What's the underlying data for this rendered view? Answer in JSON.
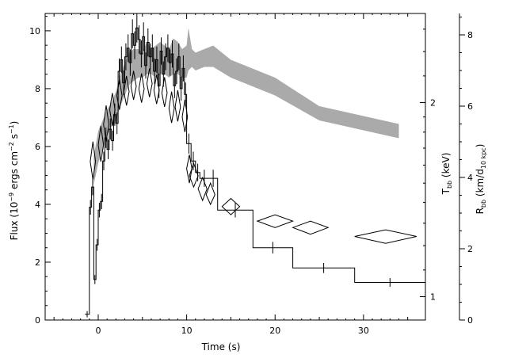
{
  "chart_data": {
    "type": "line",
    "xlabel": "Time (s)",
    "xlim": [
      -6,
      37
    ],
    "x_ticks": [
      0,
      10,
      20,
      30
    ],
    "grid": false,
    "left_axis": {
      "ylabel_prefix": "Flux (10",
      "ylabel_exp1": "−9",
      "ylabel_mid": " ergs cm",
      "ylabel_exp2": "−2",
      "ylabel_mid2": " s",
      "ylabel_exp3": "−1",
      "ylabel_suffix": ")",
      "ylim": [
        0,
        10.6
      ],
      "ticks": [
        0,
        2,
        4,
        6,
        8,
        10
      ]
    },
    "temperature_axis": {
      "label": "T",
      "label_sub": "bb",
      "unit": " (keV)",
      "scale": "log",
      "ylim": [
        0.92,
        2.75
      ],
      "ticks": [
        1,
        2
      ]
    },
    "radius_axis": {
      "label": "R",
      "label_sub": "bb",
      "unit": " (km/d",
      "unit_sub": "10 kpc",
      "unit_end": ")",
      "ylim": [
        0,
        8.6
      ],
      "ticks": [
        0,
        2,
        4,
        6,
        8
      ]
    },
    "series": [
      {
        "kind": "flux_histogram",
        "edges": [
          -1.5,
          -1,
          -0.75,
          -0.5,
          -0.25,
          0,
          0.25,
          0.5,
          0.75,
          1,
          1.25,
          1.5,
          1.75,
          2,
          2.25,
          2.5,
          2.75,
          3,
          3.25,
          3.5,
          3.75,
          4,
          4.25,
          4.5,
          4.75,
          5,
          5.25,
          5.5,
          5.75,
          6,
          6.25,
          6.5,
          6.75,
          7,
          7.25,
          7.5,
          7.75,
          8,
          8.25,
          8.5,
          8.75,
          9,
          9.25,
          9.5,
          9.75,
          10,
          10.5,
          11,
          11.5,
          12.5,
          13.5,
          17.5,
          22,
          29,
          37
        ],
        "values": [
          0.2,
          3.9,
          4.6,
          1.4,
          2.6,
          3.8,
          4.1,
          5.5,
          6.3,
          5.9,
          6.6,
          6.2,
          7.1,
          6.8,
          8.6,
          9.0,
          8.2,
          9.1,
          9.4,
          8.9,
          9.9,
          9.5,
          10.1,
          9.7,
          9.2,
          9.8,
          8.8,
          9.6,
          9.1,
          9.4,
          8.6,
          9.0,
          8.1,
          9.3,
          8.5,
          9.1,
          9.4,
          8.9,
          9.2,
          8.1,
          8.6,
          9.1,
          8.0,
          8.7,
          7.8,
          6.1,
          5.5,
          5.1,
          4.9,
          4.9,
          3.8,
          2.5,
          1.8,
          1.3
        ]
      },
      {
        "kind": "temperature_diamonds",
        "points": [
          {
            "t": -0.6,
            "dt": 0.3,
            "kT": 1.62,
            "lo": 1.52,
            "hi": 1.74
          },
          {
            "t": 0.3,
            "dt": 0.3,
            "kT": 1.72,
            "lo": 1.62,
            "hi": 1.84
          },
          {
            "t": 0.9,
            "dt": 0.3,
            "kT": 1.85,
            "lo": 1.74,
            "hi": 1.98
          },
          {
            "t": 1.6,
            "dt": 0.3,
            "kT": 1.95,
            "lo": 1.84,
            "hi": 2.07
          },
          {
            "t": 2.4,
            "dt": 0.3,
            "kT": 2.05,
            "lo": 1.95,
            "hi": 2.17
          },
          {
            "t": 3.2,
            "dt": 0.3,
            "kT": 2.08,
            "lo": 1.98,
            "hi": 2.2
          },
          {
            "t": 4.0,
            "dt": 0.3,
            "kT": 2.12,
            "lo": 2.02,
            "hi": 2.24
          },
          {
            "t": 4.9,
            "dt": 0.3,
            "kT": 2.1,
            "lo": 2.0,
            "hi": 2.22
          },
          {
            "t": 5.8,
            "dt": 0.3,
            "kT": 2.14,
            "lo": 2.04,
            "hi": 2.26
          },
          {
            "t": 6.6,
            "dt": 0.3,
            "kT": 2.09,
            "lo": 1.99,
            "hi": 2.21
          },
          {
            "t": 7.5,
            "dt": 0.3,
            "kT": 2.07,
            "lo": 1.97,
            "hi": 2.19
          },
          {
            "t": 8.3,
            "dt": 0.3,
            "kT": 1.96,
            "lo": 1.86,
            "hi": 2.08
          },
          {
            "t": 9.0,
            "dt": 0.3,
            "kT": 1.97,
            "lo": 1.87,
            "hi": 2.09
          },
          {
            "t": 9.8,
            "dt": 0.3,
            "kT": 1.9,
            "lo": 1.8,
            "hi": 2.02
          },
          {
            "t": 10.3,
            "dt": 0.3,
            "kT": 1.58,
            "lo": 1.5,
            "hi": 1.66
          },
          {
            "t": 10.8,
            "dt": 0.5,
            "kT": 1.54,
            "lo": 1.48,
            "hi": 1.61
          },
          {
            "t": 11.8,
            "dt": 0.5,
            "kT": 1.47,
            "lo": 1.41,
            "hi": 1.53
          },
          {
            "t": 12.7,
            "dt": 0.5,
            "kT": 1.44,
            "lo": 1.39,
            "hi": 1.5
          },
          {
            "t": 15.0,
            "dt": 1.0,
            "kT": 1.38,
            "lo": 1.34,
            "hi": 1.42
          },
          {
            "t": 20.0,
            "dt": 2.0,
            "kT": 1.31,
            "lo": 1.28,
            "hi": 1.34
          },
          {
            "t": 24.0,
            "dt": 2.0,
            "kT": 1.28,
            "lo": 1.25,
            "hi": 1.31
          },
          {
            "t": 32.5,
            "dt": 3.5,
            "kT": 1.24,
            "lo": 1.21,
            "hi": 1.27
          }
        ]
      },
      {
        "kind": "radius_band",
        "color": "#aaaaaa",
        "t": [
          -0.5,
          0,
          0.5,
          1,
          1.5,
          2,
          2.5,
          3,
          3.5,
          4,
          4.5,
          5,
          5.5,
          6,
          6.5,
          7,
          7.5,
          8,
          8.5,
          9,
          9.5,
          10,
          10.2,
          10.6,
          11,
          12,
          13,
          15,
          20,
          25,
          34
        ],
        "lower": [
          3.8,
          4.4,
          4.8,
          5.2,
          5.4,
          5.6,
          6.0,
          6.3,
          6.6,
          6.7,
          6.8,
          6.8,
          6.9,
          6.9,
          6.8,
          6.9,
          6.9,
          6.8,
          6.9,
          6.9,
          6.8,
          6.8,
          7.0,
          7.1,
          7.0,
          7.1,
          7.1,
          6.8,
          6.3,
          5.6,
          5.1
        ],
        "upper": [
          4.6,
          5.3,
          5.6,
          5.9,
          6.1,
          6.4,
          6.9,
          7.2,
          7.5,
          7.6,
          7.6,
          7.5,
          7.8,
          7.6,
          7.7,
          7.8,
          7.7,
          7.6,
          7.9,
          7.8,
          7.6,
          7.7,
          8.2,
          7.6,
          7.5,
          7.6,
          7.7,
          7.3,
          6.8,
          6.0,
          5.5
        ]
      }
    ]
  }
}
